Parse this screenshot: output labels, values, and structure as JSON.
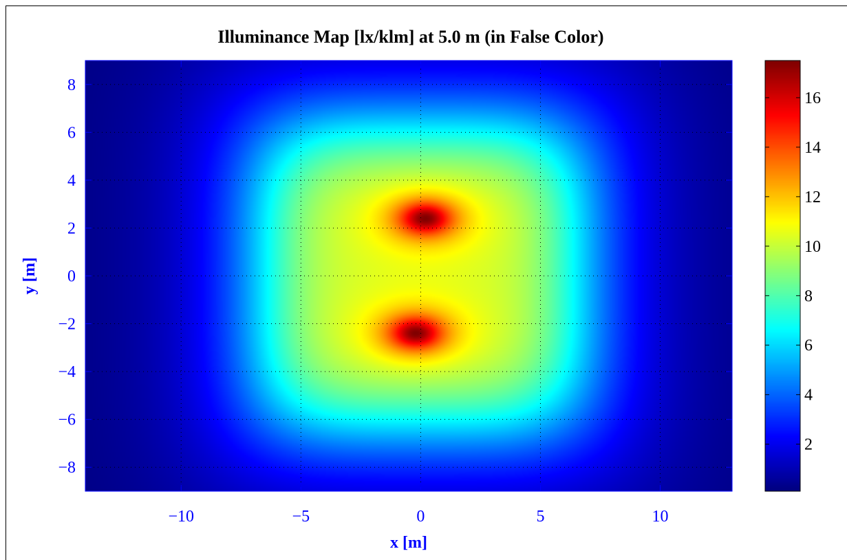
{
  "chart_data": {
    "type": "heatmap",
    "title": "Illuminance Map [lx/klm] at 5.0 m (in False Color)",
    "xlabel": "x [m]",
    "ylabel": "y [m]",
    "xlim": [
      -14,
      13
    ],
    "ylim": [
      -9,
      9
    ],
    "x_ticks": [
      -10,
      -5,
      0,
      5,
      10
    ],
    "x_tick_labels": [
      "−10",
      "−5",
      "0",
      "5",
      "10"
    ],
    "y_ticks": [
      8,
      6,
      4,
      2,
      0,
      -2,
      -4,
      -6,
      -8
    ],
    "y_tick_labels": [
      "8",
      "6",
      "4",
      "2",
      "0",
      "−2",
      "−4",
      "−6",
      "−8"
    ],
    "grid": true,
    "colormap": "jet",
    "colorbar": {
      "range": [
        0.1,
        17.5
      ],
      "ticks": [
        2,
        4,
        6,
        8,
        10,
        12,
        14,
        16
      ],
      "tick_labels": [
        "2",
        "4",
        "6",
        "8",
        "10",
        "12",
        "14",
        "16"
      ]
    },
    "peaks": [
      {
        "x": 0.2,
        "y": 2.4,
        "value": 17.4
      },
      {
        "x": -0.2,
        "y": -2.4,
        "value": 17.4
      }
    ],
    "value_range": {
      "min": 0.1,
      "max": 17.5
    }
  }
}
